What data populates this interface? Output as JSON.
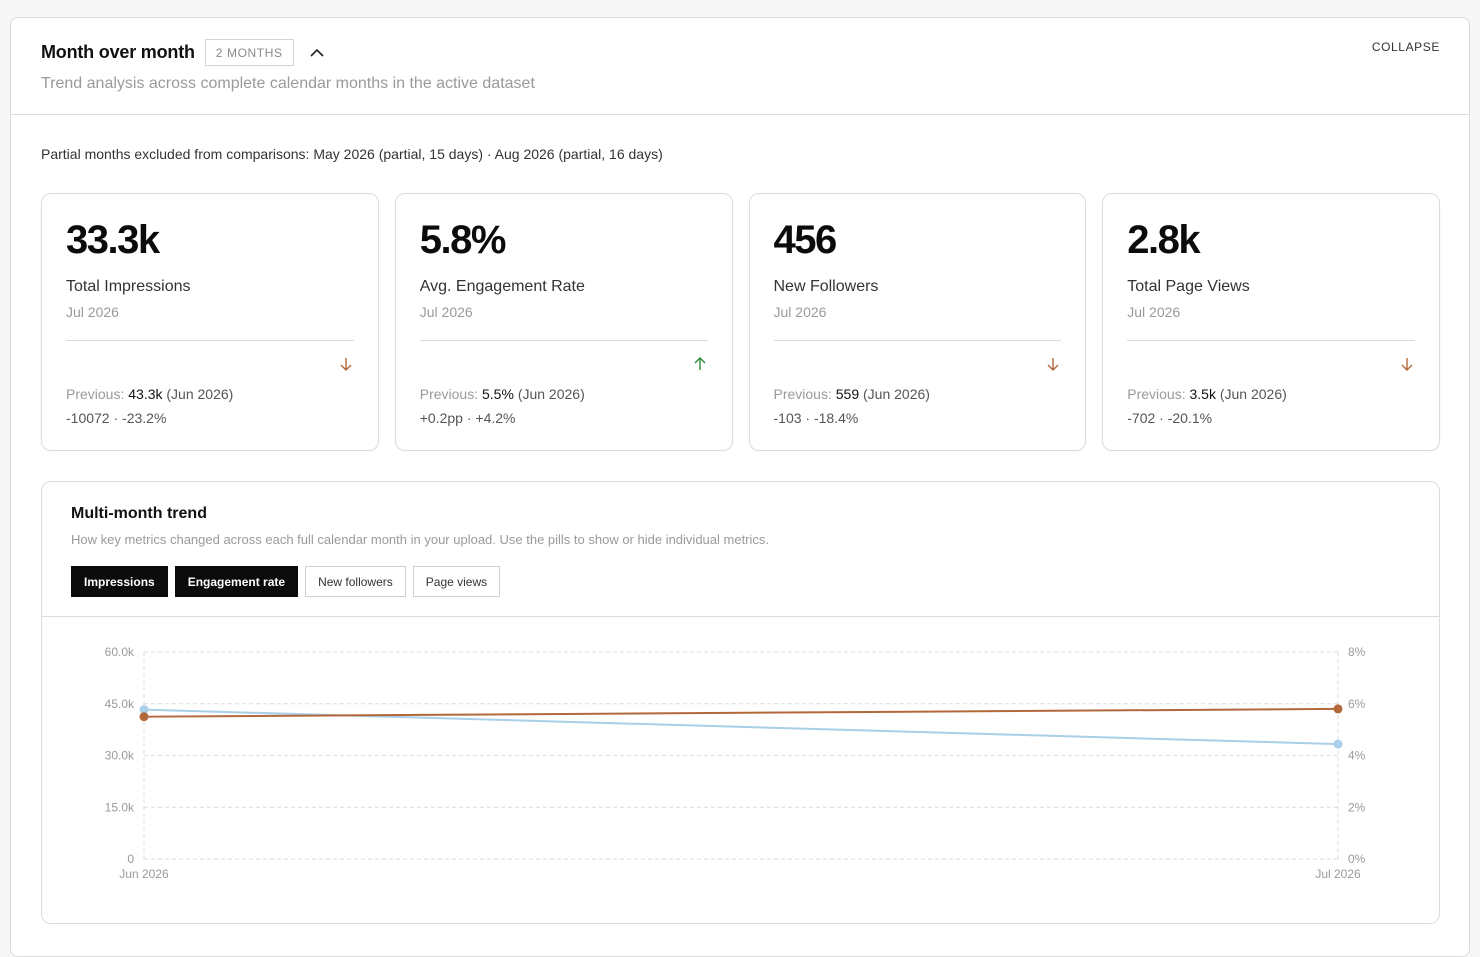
{
  "header": {
    "title": "Month over month",
    "badge": "2 MONTHS",
    "subtitle": "Trend analysis across complete calendar months in the active dataset",
    "collapse_label": "COLLAPSE"
  },
  "note": "Partial months excluded from comparisons: May 2026 (partial, 15 days) · Aug 2026 (partial, 16 days)",
  "colors": {
    "impressions": "#a9cfe9",
    "engagement": "#b2683a",
    "trend_down": "#b2683a",
    "trend_up": "#2f8a3a"
  },
  "cards": [
    {
      "value": "33.3k",
      "label": "Total Impressions",
      "period": "Jul 2026",
      "trend": "down",
      "prev_label": "Previous:",
      "prev_value": "43.3k",
      "prev_period": "(Jun 2026)",
      "change": "-10072 · -23.2%"
    },
    {
      "value": "5.8%",
      "label": "Avg. Engagement Rate",
      "period": "Jul 2026",
      "trend": "up",
      "prev_label": "Previous:",
      "prev_value": "5.5%",
      "prev_period": "(Jun 2026)",
      "change": "+0.2pp · +4.2%"
    },
    {
      "value": "456",
      "label": "New Followers",
      "period": "Jul 2026",
      "trend": "down",
      "prev_label": "Previous:",
      "prev_value": "559",
      "prev_period": "(Jun 2026)",
      "change": "-103 · -18.4%"
    },
    {
      "value": "2.8k",
      "label": "Total Page Views",
      "period": "Jul 2026",
      "trend": "down",
      "prev_label": "Previous:",
      "prev_value": "3.5k",
      "prev_period": "(Jun 2026)",
      "change": "-702 · -20.1%"
    }
  ],
  "trend": {
    "title": "Multi-month trend",
    "description": "How key metrics changed across each full calendar month in your upload. Use the pills to show or hide individual metrics.",
    "pills": [
      {
        "label": "Impressions",
        "active": true
      },
      {
        "label": "Engagement rate",
        "active": true
      },
      {
        "label": "New followers",
        "active": false
      },
      {
        "label": "Page views",
        "active": false
      }
    ]
  },
  "chart_data": {
    "type": "line",
    "x": [
      "Jun 2026",
      "Jul 2026"
    ],
    "y_left": {
      "ticks": [
        0,
        15000,
        30000,
        45000,
        60000
      ],
      "tick_labels": [
        "0",
        "15.0k",
        "30.0k",
        "45.0k",
        "60.0k"
      ],
      "ylim": [
        0,
        60000
      ]
    },
    "y_right": {
      "ticks": [
        0,
        2,
        4,
        6,
        8
      ],
      "tick_labels": [
        "0%",
        "2%",
        "4%",
        "6%",
        "8%"
      ],
      "ylim": [
        0,
        8
      ]
    },
    "series": [
      {
        "name": "Impressions",
        "axis": "left",
        "color": "#a9cfe9",
        "values": [
          43300,
          33300
        ]
      },
      {
        "name": "Engagement rate",
        "axis": "right",
        "color": "#b2683a",
        "values": [
          5.5,
          5.8
        ]
      }
    ],
    "grid": true,
    "legend": "none"
  }
}
